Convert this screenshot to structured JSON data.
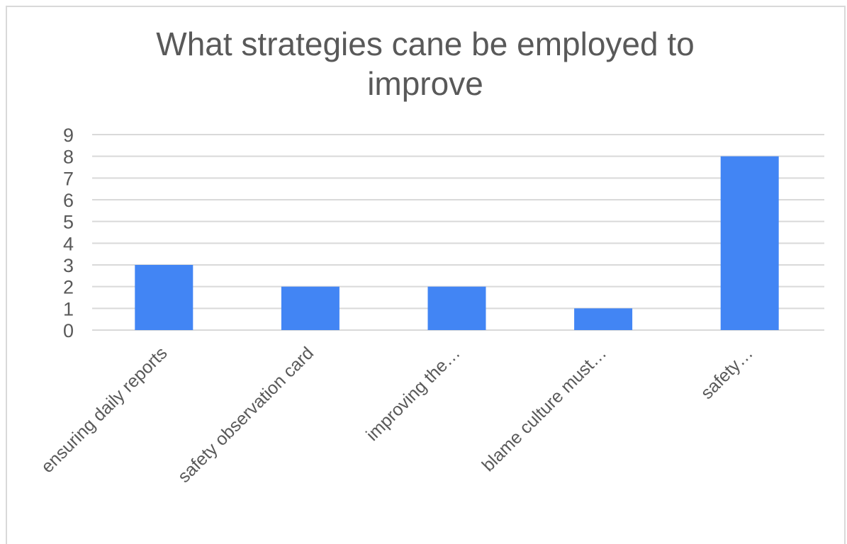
{
  "chart_data": {
    "type": "bar",
    "title": "What strategies cane be employed to improve",
    "xlabel": "",
    "ylabel": "",
    "categories": [
      "ensuring daily reports",
      "safety observation card",
      "improving the…",
      "blame culture must…",
      "safety…"
    ],
    "series": [
      {
        "values": [
          3,
          2,
          2,
          1,
          8
        ]
      }
    ],
    "ylim": [
      0,
      9
    ],
    "yticks": [
      "0",
      "1",
      "2",
      "3",
      "4",
      "5",
      "6",
      "7",
      "8",
      "9"
    ],
    "grid": true,
    "legend": "none",
    "bar_color": "#4285f4",
    "grid_color": "#d9d9d9",
    "text_color": "#595959"
  }
}
